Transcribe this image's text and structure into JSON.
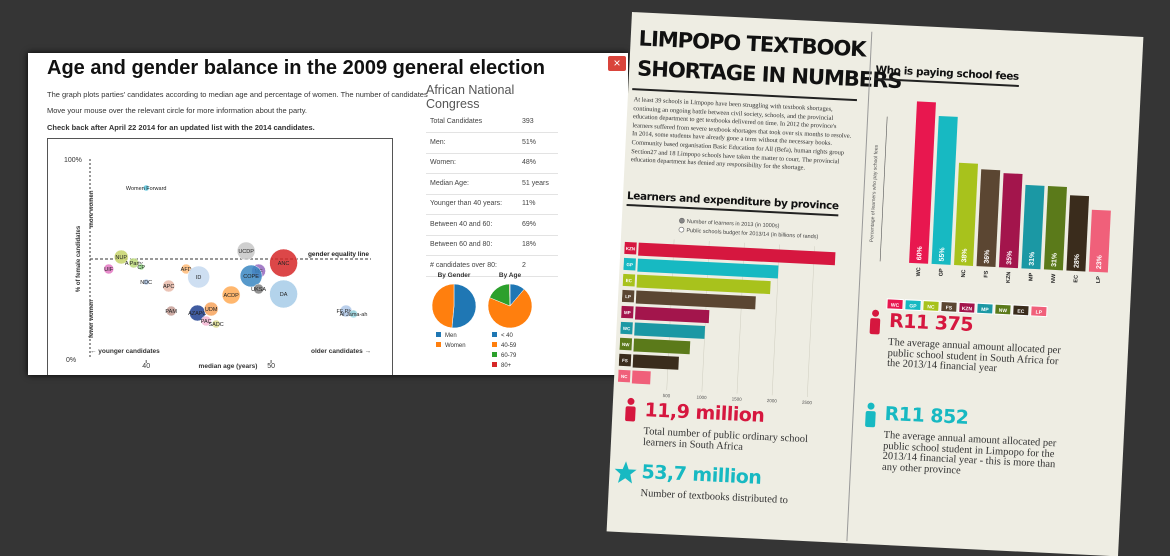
{
  "left_panel": {
    "title": "Age and gender balance in the 2009 general election",
    "close": "×",
    "intro": [
      "The graph plots parties' candidates according to median age and percentage of women. The number of candidates",
      "Move your mouse over the relevant circle for more information about the party.",
      "Check back after April 22 2014 for an updated list with the 2014 candidates."
    ],
    "scatter": {
      "type": "scatter",
      "y_top": "100%",
      "y_bottom": "0%",
      "y_more": "more women",
      "y_fewer": "fewer women",
      "ylabel": "% of female candidates",
      "xlabel": "median age (years)",
      "x_left": "← younger candidates",
      "x_right": "older candidates →",
      "equality_label": "gender equality line",
      "equality": 50,
      "xlim": [
        35.5,
        58
      ],
      "ylim": [
        0,
        100
      ],
      "xticks": [
        40,
        50
      ],
      "points": [
        {
          "name": "Women Forward",
          "x": 40,
          "y": 85.5,
          "size": 3,
          "color": "#5bc8e0"
        },
        {
          "name": "NUP",
          "x": 38,
          "y": 51,
          "size": 7,
          "color": "#c7d36a"
        },
        {
          "name": "UIF",
          "x": 37,
          "y": 45,
          "size": 5,
          "color": "#e377c2"
        },
        {
          "name": "A Party",
          "x": 39,
          "y": 48,
          "size": 5,
          "color": "#bcd97a"
        },
        {
          "name": "CP",
          "x": 39.6,
          "y": 46,
          "size": 3,
          "color": "#98df8a"
        },
        {
          "name": "NDC",
          "x": 40,
          "y": 38.5,
          "size": 3,
          "color": "#aec7e8"
        },
        {
          "name": "APC",
          "x": 41.8,
          "y": 36.5,
          "size": 6,
          "color": "#e8b9a8"
        },
        {
          "name": "AFD",
          "x": 43.2,
          "y": 45,
          "size": 5,
          "color": "#ffbb78"
        },
        {
          "name": "ID",
          "x": 44.2,
          "y": 41,
          "size": 11,
          "color": "#c5d9f0"
        },
        {
          "name": "UCDP",
          "x": 48,
          "y": 54,
          "size": 9,
          "color": "#c7c7c7"
        },
        {
          "name": "MF",
          "x": 49,
          "y": 44,
          "size": 7,
          "color": "#9467bd"
        },
        {
          "name": "COPE",
          "x": 48.4,
          "y": 41.5,
          "size": 11,
          "color": "#3a87c2"
        },
        {
          "name": "ANC",
          "x": 51,
          "y": 48,
          "size": 14,
          "color": "#d62728"
        },
        {
          "name": "DA",
          "x": 51,
          "y": 32.5,
          "size": 14,
          "color": "#a6cbe8"
        },
        {
          "name": "UKSA",
          "x": 49,
          "y": 35,
          "size": 5,
          "color": "#7f7f7f"
        },
        {
          "name": "ACDP",
          "x": 46.8,
          "y": 32,
          "size": 9,
          "color": "#ffaa55"
        },
        {
          "name": "PAM",
          "x": 42,
          "y": 24,
          "size": 5,
          "color": "#c49c94"
        },
        {
          "name": "AZAPO",
          "x": 44.1,
          "y": 23,
          "size": 8,
          "color": "#1f3f8f"
        },
        {
          "name": "UDM",
          "x": 45.2,
          "y": 25,
          "size": 7,
          "color": "#f7a35c"
        },
        {
          "name": "PAC",
          "x": 44.8,
          "y": 19,
          "size": 5,
          "color": "#f4b6d2"
        },
        {
          "name": "SADC",
          "x": 45.6,
          "y": 17.5,
          "size": 4,
          "color": "#dbdb8d"
        },
        {
          "name": "FF Plus",
          "x": 56,
          "y": 24,
          "size": 6,
          "color": "#aec7e8"
        },
        {
          "name": "Al Jama-ah",
          "x": 56.6,
          "y": 22.5,
          "size": 4,
          "color": "#9edae5"
        }
      ]
    },
    "party": {
      "name": "African National Congress",
      "rows": [
        [
          "Total Candidates",
          "393"
        ],
        [
          "Men:",
          "51%"
        ],
        [
          "Women:",
          "48%"
        ],
        [
          "Median Age:",
          "51 years"
        ],
        [
          "Younger than 40 years:",
          "11%"
        ],
        [
          "Between 40 and 60:",
          "69%"
        ],
        [
          "Between 60 and 80:",
          "18%"
        ],
        [
          "# candidates over 80:",
          "2"
        ]
      ]
    },
    "pies": [
      {
        "type": "pie",
        "title": "By Gender",
        "categories": [
          "Men",
          "Women"
        ],
        "values": [
          51,
          48
        ],
        "colors": [
          "#1f77b4",
          "#ff7f0e"
        ]
      },
      {
        "type": "pie",
        "title": "By Age",
        "categories": [
          "< 40",
          "40-59",
          "60-79",
          "80+"
        ],
        "values": [
          11,
          69,
          18,
          0.5
        ],
        "colors": [
          "#1f77b4",
          "#ff7f0e",
          "#2ca02c",
          "#d62728"
        ]
      }
    ]
  },
  "infographic": {
    "title_lines": [
      "LIMPOPO TEXTBOOK",
      "SHORTAGE IN NUMBERS"
    ],
    "body": "At least 39 schools in Limpopo have been struggling with textbook shortages, continuing an ongoing battle between civil society, schools, and the provincial education department to get textbooks delivered on time. In 2012 the province's learners suffered from severe textbook shortages that took over six months to resolve. In 2014, some students have already gone a term without the necessary books. Community based organisation Basic Education for All (Befa), human rights group Section27 and 18 Limpopo schools have taken the matter to court. The provincial education department has denied any responsibility for the shortage.",
    "learners": {
      "type": "bar",
      "title": "Learners and expenditure by province",
      "legend": [
        "Number of learners in 2013 (in 1000s)",
        "Public schools budget for 2013/14 (in billions of rands)"
      ],
      "categories": [
        "KZN",
        "GP",
        "EC",
        "LP",
        "MP",
        "WC",
        "NW",
        "FS",
        "NC"
      ],
      "values": [
        2800,
        2000,
        1900,
        1700,
        1050,
        1000,
        800,
        650,
        260
      ],
      "colors": [
        "#d6173f",
        "#17b9c2",
        "#a8c21c",
        "#5b4632",
        "#a3154c",
        "#1b98a4",
        "#5b7a1a",
        "#3a2c1c",
        "#f0607a"
      ],
      "xlim": [
        0,
        2900
      ],
      "xticks": [
        500,
        1000,
        1500,
        2000,
        2500
      ]
    },
    "fees": {
      "type": "bar",
      "title": "Who is paying school fees",
      "ylabel": "Percentage of learners who pay school fees",
      "categories": [
        "WC",
        "GP",
        "NC",
        "FS",
        "KZN",
        "MP",
        "NW",
        "EC",
        "LP"
      ],
      "values": [
        60,
        55,
        38,
        36,
        35,
        31,
        31,
        28,
        23
      ],
      "value_labels": [
        "60%",
        "55%",
        "38%",
        "36%",
        "35%",
        "31%",
        "31%",
        "28%",
        "23%"
      ],
      "colors": [
        "#e8174f",
        "#17b9c2",
        "#a8c21c",
        "#5b4632",
        "#a3154c",
        "#1b98a4",
        "#5b7a1a",
        "#3a2c1c",
        "#f0607a"
      ],
      "ylim": [
        0,
        62
      ]
    },
    "stats": [
      {
        "value": "11,9 million",
        "text": "Total number of public ordinary school learners in South Africa"
      },
      {
        "value": "53,7 million",
        "text": "Number of textbooks distributed to"
      },
      {
        "value": "R11 375",
        "text": "The average annual amount allocated per public school student in South Africa for the 2013/14 financial year"
      },
      {
        "value": "R11 852",
        "text": "The average annual amount allocated per public school student in Limpopo for the 2013/14 financial year - this is more than any other province"
      }
    ]
  }
}
